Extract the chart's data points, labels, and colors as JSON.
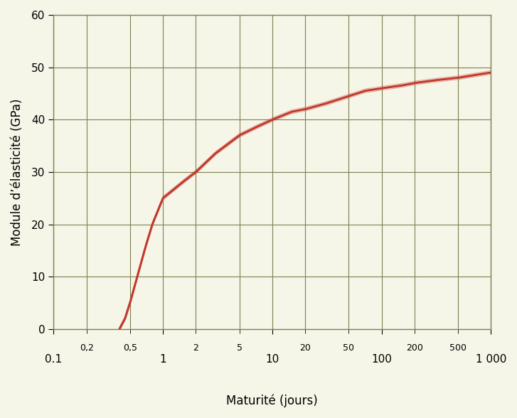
{
  "xlabel": "Maturité (jours)",
  "ylabel": "Module d’élasticité (GPa)",
  "xlim": [
    0.1,
    1000
  ],
  "ylim": [
    0,
    60
  ],
  "yticks": [
    0,
    10,
    20,
    30,
    40,
    50,
    60
  ],
  "xticks_major": [
    0.1,
    1,
    10,
    100,
    1000
  ],
  "xticks_major_labels": [
    "0.1",
    "1",
    "10",
    "100",
    "1 000"
  ],
  "xticks_minor": [
    0.2,
    0.5,
    2,
    5,
    20,
    50,
    200,
    500
  ],
  "xticks_minor_labels": [
    "0,2",
    "0,5",
    "2",
    "5",
    "20",
    "50",
    "200",
    "500"
  ],
  "curve_color": "#c0392b",
  "curve_linewidth": 2.2,
  "background_color": "#f5f5e8",
  "grid_color": "#808050",
  "E_inf": 49.0,
  "s": 0.5,
  "t_ref": 0.4,
  "x_start": 0.4,
  "x_end": 1000
}
